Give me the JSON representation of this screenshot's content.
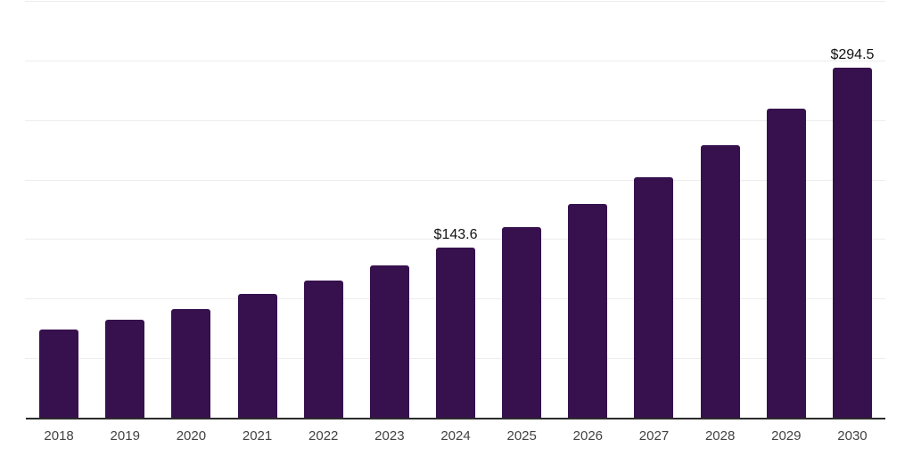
{
  "chart_data": {
    "type": "bar",
    "title": "",
    "xlabel": "",
    "ylabel": "",
    "categories": [
      "2018",
      "2019",
      "2020",
      "2021",
      "2022",
      "2023",
      "2024",
      "2025",
      "2026",
      "2027",
      "2028",
      "2029",
      "2030"
    ],
    "values": [
      74.9,
      83.1,
      91.8,
      104.8,
      115.9,
      129.0,
      143.6,
      160.9,
      180.3,
      202.7,
      229.6,
      260.3,
      294.5
    ],
    "point_labels": [
      {
        "category": "2024",
        "text": "$143.6"
      },
      {
        "category": "2030",
        "text": "$294.5"
      }
    ],
    "ylim": [
      0,
      350
    ],
    "grid_step": 50,
    "grid": "horizontal",
    "legend": "none",
    "y_axis_tick_labels_visible": false
  },
  "colors": {
    "bar_fill": "#37114D",
    "gridline": "#EDEDED",
    "x_axis_line": "#2B2B2B",
    "x_tick_label": "#424242",
    "value_label": "#111111",
    "background": "#FFFFFF"
  }
}
